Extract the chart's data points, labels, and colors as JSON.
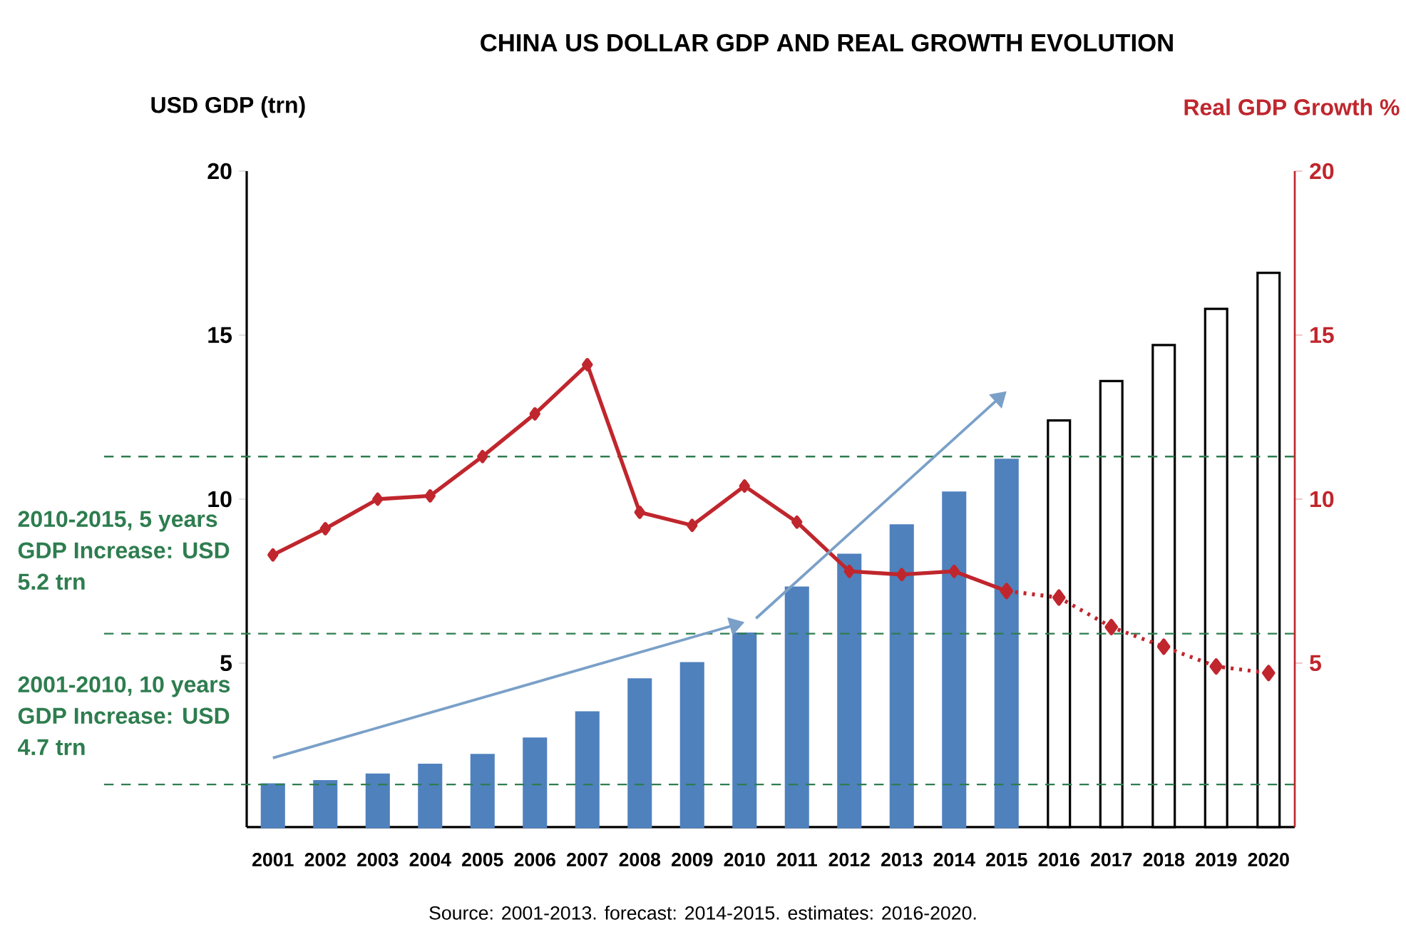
{
  "chart_data": {
    "type": "bar",
    "title": "CHINA US DOLLAR GDP AND REAL GROWTH EVOLUTION",
    "ylabel": "USD GDP (trn)",
    "y2label": "Real GDP Growth %",
    "categories": [
      "2001",
      "2002",
      "2003",
      "2004",
      "2005",
      "2006",
      "2007",
      "2008",
      "2009",
      "2010",
      "2011",
      "2012",
      "2013",
      "2014",
      "2015",
      "2016",
      "2017",
      "2018",
      "2019",
      "2020"
    ],
    "series": [
      {
        "color": "#4f81bd",
        "values": [
          1.3,
          1.4,
          1.6,
          1.9,
          2.2,
          2.7,
          3.5,
          4.5,
          5.0,
          5.9,
          7.3,
          8.3,
          9.2,
          10.2,
          11.2,
          null,
          null,
          null,
          null,
          null
        ]
      },
      {
        "color": "#ffffff",
        "values": [
          null,
          null,
          null,
          null,
          null,
          null,
          null,
          null,
          null,
          null,
          null,
          null,
          null,
          null,
          null,
          12.4,
          13.6,
          14.7,
          15.8,
          16.9
        ]
      },
      {
        "type": "line",
        "axis": "y2",
        "color": "#c0262d",
        "marker": "diamond",
        "line_style": "solid",
        "values": [
          8.3,
          9.1,
          10.0,
          10.1,
          11.3,
          12.6,
          14.1,
          9.6,
          9.2,
          10.4,
          9.3,
          7.8,
          7.7,
          7.8,
          7.2,
          null,
          null,
          null,
          null,
          null
        ]
      },
      {
        "type": "line",
        "axis": "y2",
        "color": "#c0262d",
        "marker": "diamond",
        "line_style": "dotted",
        "values": [
          null,
          null,
          null,
          null,
          null,
          null,
          null,
          null,
          null,
          null,
          null,
          null,
          null,
          null,
          7.2,
          7.0,
          6.1,
          5.5,
          4.9,
          4.7
        ]
      }
    ],
    "ylim": [
      0,
      20
    ],
    "yticks": [
      5,
      10,
      15,
      20
    ],
    "y2lim": [
      0,
      20
    ],
    "y2ticks": [
      5,
      10,
      15,
      20
    ],
    "ref_lines": [
      {
        "axis": "y",
        "value": 1.3,
        "color": "#2e7d4f",
        "line_style": "dashed"
      },
      {
        "axis": "y",
        "value": 5.9,
        "color": "#2e7d4f",
        "line_style": "dashed"
      },
      {
        "axis": "y",
        "value": 11.3,
        "color": "#2e7d4f",
        "line_style": "dashed"
      }
    ],
    "annotations": [
      "2010-2015, 5 years GDP Increase: USD 5.2 trn",
      "2001-2010, 10 years GDP Increase: USD 4.7 trn",
      "Source: 2001-2013. forecast: 2014-2015. estimates: 2016-2020."
    ],
    "grid": false
  }
}
